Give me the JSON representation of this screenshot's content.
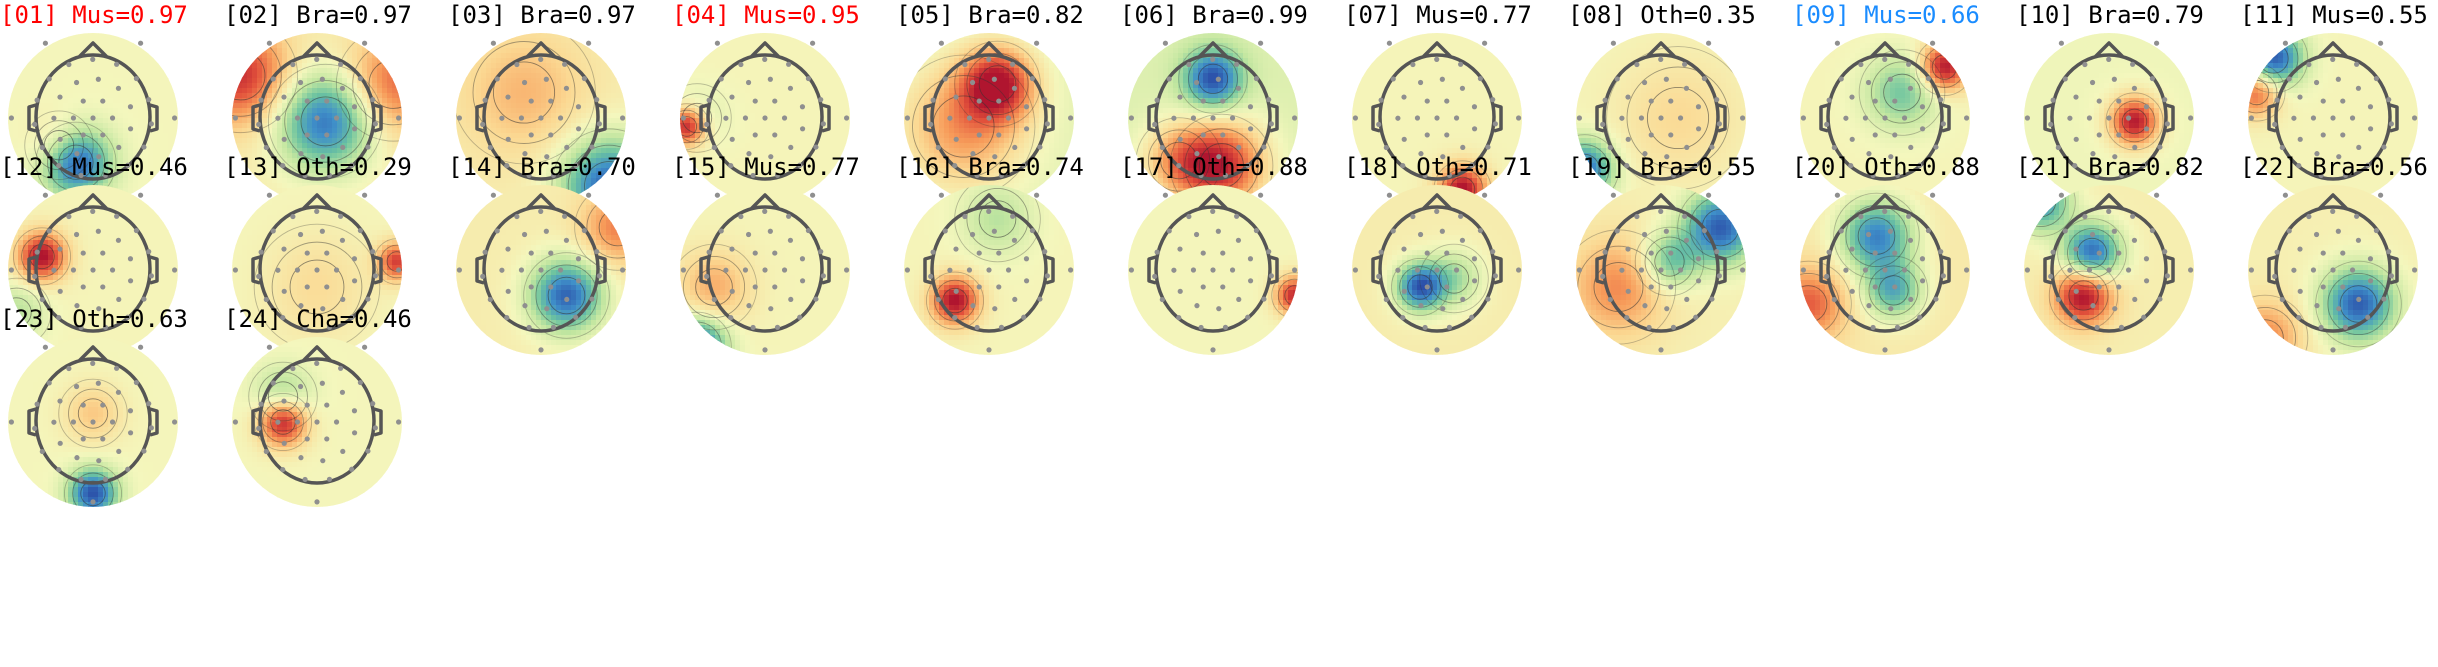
{
  "colors": {
    "title_default": "#000000",
    "title_rejected": "#ff0000",
    "title_flagged": "#1a8cff",
    "electrode": "#8f8f8f",
    "head_outline": "#555555",
    "contour": "#333333",
    "background_field": "#f4f7bd",
    "colormap": [
      "#2b4ea8",
      "#3f8fc9",
      "#6cc3a0",
      "#c2e6a0",
      "#f4f7bd",
      "#fbd892",
      "#f79c5a",
      "#e2513b",
      "#b0152f"
    ]
  },
  "components": [
    {
      "title": "[01] Mus=0.97",
      "status": "rejected",
      "base": 0.05,
      "blobs": [
        [
          0.4,
          0.76,
          0.14,
          -1.0
        ],
        [
          0.3,
          0.66,
          0.12,
          0.3
        ]
      ]
    },
    {
      "title": "[02] Bra=0.97",
      "status": "normal",
      "base": 0.35,
      "blobs": [
        [
          0.55,
          0.52,
          0.2,
          -0.95
        ],
        [
          0.05,
          0.25,
          0.2,
          0.8
        ],
        [
          0.95,
          0.3,
          0.2,
          0.6
        ]
      ]
    },
    {
      "title": "[03] Bra=0.97",
      "status": "normal",
      "base": 0.35,
      "blobs": [
        [
          0.9,
          0.9,
          0.2,
          -1.0
        ],
        [
          0.4,
          0.35,
          0.25,
          0.3
        ]
      ]
    },
    {
      "title": "[04] Mus=0.95",
      "status": "rejected",
      "base": 0.1,
      "blobs": [
        [
          0.04,
          0.55,
          0.08,
          1.0
        ],
        [
          0.1,
          0.5,
          0.12,
          -0.2
        ]
      ]
    },
    {
      "title": "[05] Bra=0.82",
      "status": "normal",
      "base": -0.35,
      "blobs": [
        [
          0.55,
          0.3,
          0.15,
          1.0
        ],
        [
          0.35,
          0.55,
          0.25,
          0.6
        ]
      ]
    },
    {
      "title": "[06] Bra=0.99",
      "status": "normal",
      "base": -0.45,
      "blobs": [
        [
          0.5,
          0.27,
          0.12,
          -0.9
        ],
        [
          0.55,
          0.78,
          0.18,
          1.0
        ],
        [
          0.3,
          0.75,
          0.15,
          0.5
        ]
      ]
    },
    {
      "title": "[07] Mus=0.77",
      "status": "normal",
      "base": 0.1,
      "blobs": [
        [
          0.65,
          0.92,
          0.1,
          1.0
        ]
      ]
    },
    {
      "title": "[08] Oth=0.35",
      "status": "normal",
      "base": 0.1,
      "blobs": [
        [
          0.05,
          0.8,
          0.12,
          -0.9
        ],
        [
          0.6,
          0.5,
          0.25,
          0.2
        ]
      ]
    },
    {
      "title": "[09] Mus=0.66",
      "status": "flagged",
      "base": 0.1,
      "blobs": [
        [
          0.85,
          0.2,
          0.1,
          1.0
        ],
        [
          0.6,
          0.35,
          0.15,
          -0.5
        ]
      ]
    },
    {
      "title": "[10] Bra=0.79",
      "status": "normal",
      "base": -0.1,
      "blobs": [
        [
          0.65,
          0.52,
          0.1,
          1.0
        ]
      ]
    },
    {
      "title": "[11] Mus=0.55",
      "status": "normal",
      "base": 0.1,
      "blobs": [
        [
          0.15,
          0.15,
          0.12,
          -1.0
        ],
        [
          0.05,
          0.35,
          0.1,
          0.7
        ]
      ]
    },
    {
      "title": "[12] Mus=0.46",
      "status": "normal",
      "base": 0.1,
      "blobs": [
        [
          0.2,
          0.42,
          0.1,
          1.0
        ],
        [
          0.05,
          0.75,
          0.12,
          -0.3
        ]
      ]
    },
    {
      "title": "[13] Oth=0.29",
      "status": "normal",
      "base": 0.05,
      "blobs": [
        [
          0.97,
          0.45,
          0.08,
          0.8
        ],
        [
          0.5,
          0.6,
          0.22,
          0.2
        ]
      ]
    },
    {
      "title": "[14] Bra=0.70",
      "status": "normal",
      "base": 0.35,
      "blobs": [
        [
          0.65,
          0.65,
          0.15,
          -1.0
        ],
        [
          0.95,
          0.25,
          0.15,
          0.5
        ]
      ]
    },
    {
      "title": "[15] Mus=0.77",
      "status": "normal",
      "base": 0.1,
      "blobs": [
        [
          0.1,
          0.95,
          0.12,
          -1.0
        ],
        [
          0.2,
          0.6,
          0.15,
          0.4
        ]
      ]
    },
    {
      "title": "[16] Bra=0.74",
      "status": "normal",
      "base": 0.1,
      "blobs": [
        [
          0.3,
          0.68,
          0.1,
          1.0
        ],
        [
          0.55,
          0.2,
          0.15,
          -0.3
        ]
      ]
    },
    {
      "title": "[17] Oth=0.88",
      "status": "normal",
      "base": 0.05,
      "blobs": [
        [
          0.98,
          0.65,
          0.08,
          0.9
        ]
      ]
    },
    {
      "title": "[18] Oth=0.71",
      "status": "normal",
      "base": 0.35,
      "blobs": [
        [
          0.4,
          0.6,
          0.1,
          -1.0
        ],
        [
          0.6,
          0.55,
          0.12,
          -0.4
        ]
      ]
    },
    {
      "title": "[19] Bra=0.55",
      "status": "normal",
      "base": 0.25,
      "blobs": [
        [
          0.85,
          0.25,
          0.15,
          -1.0
        ],
        [
          0.55,
          0.45,
          0.12,
          -0.6
        ],
        [
          0.25,
          0.6,
          0.2,
          0.5
        ]
      ]
    },
    {
      "title": "[20] Oth=0.88",
      "status": "normal",
      "base": 0.45,
      "blobs": [
        [
          0.45,
          0.3,
          0.15,
          -0.9
        ],
        [
          0.55,
          0.62,
          0.12,
          -0.7
        ],
        [
          0.05,
          0.7,
          0.15,
          0.6
        ]
      ]
    },
    {
      "title": "[21] Bra=0.82",
      "status": "normal",
      "base": 0.3,
      "blobs": [
        [
          0.35,
          0.65,
          0.12,
          1.0
        ],
        [
          0.4,
          0.4,
          0.12,
          -1.0
        ],
        [
          0.1,
          0.1,
          0.12,
          -0.8
        ]
      ]
    },
    {
      "title": "[22] Bra=0.56",
      "status": "normal",
      "base": 0.25,
      "blobs": [
        [
          0.65,
          0.7,
          0.15,
          -1.0
        ],
        [
          0.1,
          0.9,
          0.15,
          0.5
        ]
      ]
    },
    {
      "title": "[23] Oth=0.63",
      "status": "normal",
      "base": 0.05,
      "blobs": [
        [
          0.5,
          0.92,
          0.1,
          -1.0
        ],
        [
          0.5,
          0.45,
          0.12,
          0.3
        ]
      ]
    },
    {
      "title": "[24] Cha=0.46",
      "status": "normal",
      "base": 0.05,
      "blobs": [
        [
          0.3,
          0.5,
          0.1,
          1.0
        ],
        [
          0.3,
          0.35,
          0.12,
          -0.4
        ]
      ]
    }
  ]
}
